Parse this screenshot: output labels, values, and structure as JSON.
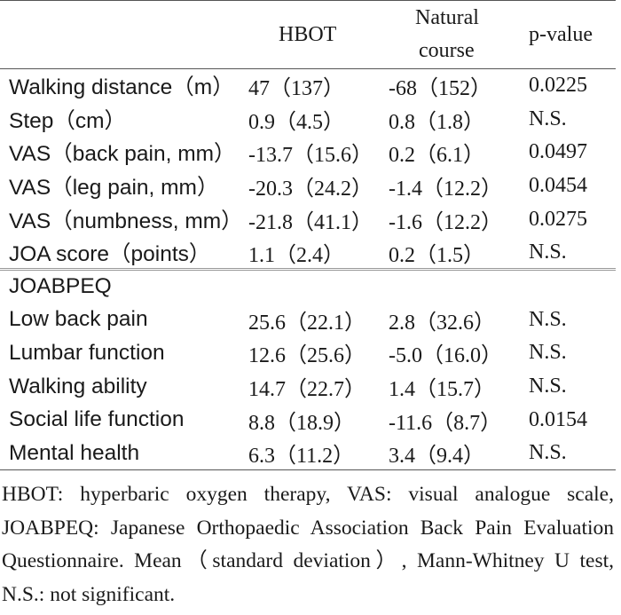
{
  "table": {
    "headers": {
      "variable": "",
      "hbot": "HBOT",
      "natural_line1": "Natural",
      "natural_line2": "course",
      "pvalue": "p-value"
    },
    "rows": [
      {
        "label": "Walking distance（m）",
        "hbot": "47（137）",
        "natural": "-68（152）",
        "p": "0.0225"
      },
      {
        "label": "Step（cm）",
        "hbot": "0.9（4.5）",
        "natural": "0.8（1.8）",
        "p": "N.S."
      },
      {
        "label": "VAS（back pain, mm）",
        "hbot": "-13.7（15.6）",
        "natural": "0.2（6.1）",
        "p": "0.0497"
      },
      {
        "label": "VAS（leg pain, mm）",
        "hbot": "-20.3（24.2）",
        "natural": "-1.4（12.2）",
        "p": "0.0454"
      },
      {
        "label": "VAS（numbness, mm）",
        "hbot": "-21.8（41.1）",
        "natural": "-1.6（12.2）",
        "p": "0.0275"
      },
      {
        "label": "JOA score（points）",
        "hbot": "1.1（2.4）",
        "natural": "0.2（1.5）",
        "p": "N.S."
      }
    ],
    "group_label": "JOABPEQ",
    "group_rows": [
      {
        "label": "Low back pain",
        "hbot": "25.6（22.1）",
        "natural": "2.8（32.6）",
        "p": "N.S."
      },
      {
        "label": "Lumbar function",
        "hbot": "12.6（25.6）",
        "natural": "-5.0（16.0）",
        "p": "N.S."
      },
      {
        "label": "Walking ability",
        "hbot": "14.7（22.7）",
        "natural": "1.4（15.7）",
        "p": "N.S."
      },
      {
        "label": "Social life function",
        "hbot": "8.8（18.9）",
        "natural": "-11.6（8.7）",
        "p": "0.0154"
      },
      {
        "label": "Mental health",
        "hbot": "6.3（11.2）",
        "natural": "3.4（9.4）",
        "p": "N.S."
      }
    ]
  },
  "footnote": "HBOT: hyperbaric oxygen therapy, VAS: visual analogue scale, JOABPEQ: Japanese Orthopaedic Association Back Pain Evaluation Questionnaire. Mean（standard deviation）, Mann-Whitney U test, N.S.: not significant."
}
